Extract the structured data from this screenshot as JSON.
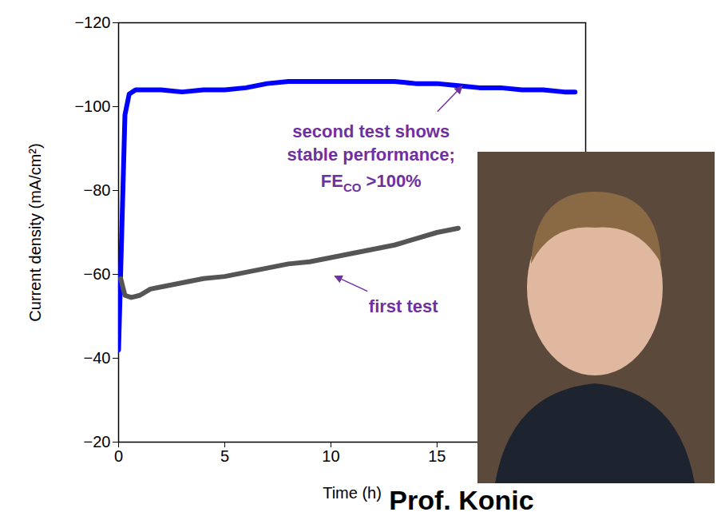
{
  "chart_data": {
    "type": "line",
    "x_label": "Time (h)",
    "y_label": "Current density (mA/cm²)",
    "xlim": [
      0,
      22
    ],
    "xticks": [
      0,
      5,
      10,
      15
    ],
    "ylim": [
      -20,
      -120
    ],
    "yticks": [
      -20,
      -40,
      -60,
      -80,
      -100,
      -120
    ],
    "grid": false,
    "series": [
      {
        "color": "#0000ff",
        "x": [
          0,
          0.15,
          0.3,
          0.5,
          0.8,
          1,
          2,
          3,
          4,
          5,
          6,
          7,
          8,
          9,
          10,
          11,
          12,
          13,
          14,
          15,
          16,
          17,
          18,
          19,
          20,
          21,
          21.5
        ],
        "values": [
          -42,
          -70,
          -98,
          -103,
          -104,
          -104,
          -104,
          -103.5,
          -104,
          -104,
          -104.5,
          -105.5,
          -106,
          -106,
          -106,
          -106,
          -106,
          -106,
          -105.5,
          -105.5,
          -105,
          -104.5,
          -104.5,
          -104,
          -104,
          -103.5,
          -103.5
        ]
      },
      {
        "color": "#555555",
        "x": [
          0.1,
          0.3,
          0.6,
          1,
          1.5,
          2,
          3,
          4,
          5,
          6,
          7,
          8,
          9,
          10,
          11,
          12,
          13,
          14,
          15,
          16
        ],
        "values": [
          -59,
          -55,
          -54.5,
          -55,
          -56.5,
          -57,
          -58,
          -59,
          -59.5,
          -60.5,
          -61.5,
          -62.5,
          -63,
          -64,
          -65,
          -66,
          -67,
          -68.5,
          -70,
          -71
        ]
      }
    ],
    "annotations": [
      {
        "lines": [
          "second test shows",
          "stable performance;"
        ],
        "last_line": {
          "text": "FE",
          "subscript": "CO",
          "rest": " >100%"
        },
        "x": 16.2,
        "y": -104.8
      },
      {
        "lines": [
          "first test"
        ],
        "x": 10.2,
        "y": -59.5
      }
    ],
    "caption": "Prof. Konic"
  }
}
